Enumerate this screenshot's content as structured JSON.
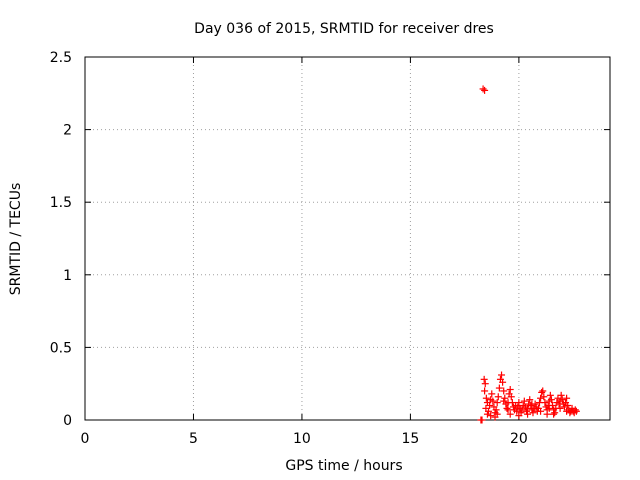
{
  "chart_data": {
    "type": "scatter",
    "title": "Day 036 of 2015, SRMTID for receiver dres",
    "xlabel": "GPS time / hours",
    "ylabel": "SRMTID / TECUs",
    "xlim": [
      0,
      24.2
    ],
    "ylim": [
      0,
      2.5
    ],
    "xticks": [
      0,
      5,
      10,
      15,
      20
    ],
    "yticks": [
      0,
      0.5,
      1,
      1.5,
      2,
      2.5
    ],
    "xtick_labels": [
      "0",
      "5",
      "10",
      "15",
      "20"
    ],
    "ytick_labels": [
      "0",
      "0.5",
      "1",
      "1.5",
      "2",
      "2.5"
    ],
    "grid": true,
    "marker": "+",
    "color": "#ff0000",
    "series": [
      {
        "name": "SRMTID",
        "points": [
          [
            18.25,
            0.0
          ],
          [
            18.3,
            0.0
          ],
          [
            18.35,
            2.28
          ],
          [
            18.42,
            2.27
          ],
          [
            18.4,
            0.28
          ],
          [
            18.45,
            0.25
          ],
          [
            18.42,
            0.2
          ],
          [
            18.5,
            0.15
          ],
          [
            18.55,
            0.12
          ],
          [
            18.48,
            0.08
          ],
          [
            18.6,
            0.06
          ],
          [
            18.65,
            0.1
          ],
          [
            18.7,
            0.14
          ],
          [
            18.75,
            0.18
          ],
          [
            18.8,
            0.13
          ],
          [
            18.85,
            0.09
          ],
          [
            18.9,
            0.05
          ],
          [
            18.95,
            0.07
          ],
          [
            19.0,
            0.12
          ],
          [
            19.05,
            0.16
          ],
          [
            19.1,
            0.22
          ],
          [
            19.15,
            0.28
          ],
          [
            19.2,
            0.31
          ],
          [
            19.25,
            0.26
          ],
          [
            19.3,
            0.2
          ],
          [
            19.35,
            0.15
          ],
          [
            19.4,
            0.11
          ],
          [
            19.45,
            0.08
          ],
          [
            19.5,
            0.12
          ],
          [
            19.55,
            0.18
          ],
          [
            19.6,
            0.21
          ],
          [
            19.65,
            0.16
          ],
          [
            19.7,
            0.12
          ],
          [
            19.75,
            0.09
          ],
          [
            19.8,
            0.07
          ],
          [
            19.85,
            0.1
          ],
          [
            19.9,
            0.06
          ],
          [
            19.95,
            0.09
          ],
          [
            20.0,
            0.12
          ],
          [
            20.05,
            0.08
          ],
          [
            20.1,
            0.05
          ],
          [
            20.15,
            0.07
          ],
          [
            20.2,
            0.1
          ],
          [
            20.25,
            0.13
          ],
          [
            20.3,
            0.09
          ],
          [
            20.35,
            0.06
          ],
          [
            20.4,
            0.08
          ],
          [
            20.45,
            0.11
          ],
          [
            20.5,
            0.14
          ],
          [
            20.55,
            0.1
          ],
          [
            20.6,
            0.07
          ],
          [
            20.65,
            0.05
          ],
          [
            20.7,
            0.08
          ],
          [
            20.75,
            0.11
          ],
          [
            20.8,
            0.09
          ],
          [
            20.85,
            0.06
          ],
          [
            20.9,
            0.08
          ],
          [
            20.95,
            0.12
          ],
          [
            21.0,
            0.15
          ],
          [
            21.05,
            0.19
          ],
          [
            21.1,
            0.2
          ],
          [
            21.15,
            0.16
          ],
          [
            21.2,
            0.12
          ],
          [
            21.25,
            0.09
          ],
          [
            21.3,
            0.07
          ],
          [
            21.35,
            0.1
          ],
          [
            21.4,
            0.13
          ],
          [
            21.45,
            0.17
          ],
          [
            21.5,
            0.14
          ],
          [
            21.55,
            0.1
          ],
          [
            21.6,
            0.07
          ],
          [
            21.65,
            0.05
          ],
          [
            21.7,
            0.08
          ],
          [
            21.75,
            0.12
          ],
          [
            21.8,
            0.15
          ],
          [
            21.85,
            0.11
          ],
          [
            21.9,
            0.13
          ],
          [
            21.95,
            0.17
          ],
          [
            22.0,
            0.14
          ],
          [
            22.05,
            0.11
          ],
          [
            22.1,
            0.09
          ],
          [
            22.15,
            0.12
          ],
          [
            22.2,
            0.15
          ],
          [
            22.25,
            0.1
          ],
          [
            22.3,
            0.07
          ],
          [
            22.35,
            0.05
          ],
          [
            22.4,
            0.06
          ],
          [
            22.45,
            0.08
          ],
          [
            22.5,
            0.06
          ],
          [
            22.55,
            0.05
          ],
          [
            22.6,
            0.07
          ],
          [
            22.65,
            0.06
          ],
          [
            18.55,
            0.04
          ],
          [
            18.7,
            0.03
          ],
          [
            18.9,
            0.02
          ],
          [
            19.0,
            0.04
          ],
          [
            19.6,
            0.04
          ],
          [
            20.0,
            0.03
          ],
          [
            20.4,
            0.04
          ],
          [
            21.0,
            0.06
          ],
          [
            21.3,
            0.04
          ],
          [
            21.6,
            0.04
          ],
          [
            21.9,
            0.08
          ],
          [
            22.2,
            0.06
          ],
          [
            19.3,
            0.13
          ],
          [
            19.5,
            0.07
          ],
          [
            20.6,
            0.11
          ],
          [
            21.4,
            0.08
          ]
        ]
      }
    ]
  }
}
